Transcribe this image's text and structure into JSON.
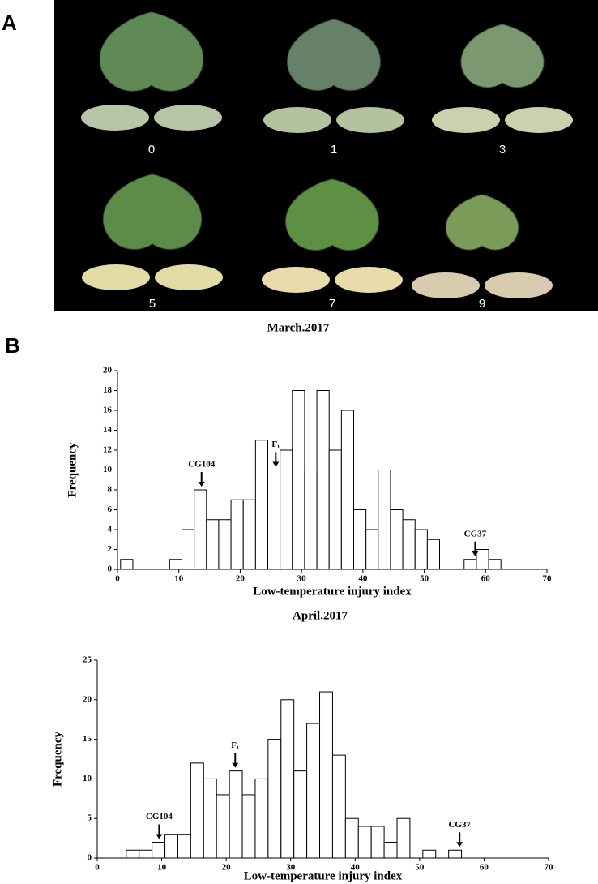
{
  "figure": {
    "panel_labels": [
      "A",
      "B"
    ],
    "grades": [
      "0",
      "1",
      "3",
      "5",
      "7",
      "9"
    ]
  },
  "chart_data": [
    {
      "type": "histogram",
      "title": "March.2017",
      "x_label": "Low-temperature injury index",
      "y_label": "Frequency",
      "bins": [
        0.5,
        2.5,
        4.5,
        6.5,
        8.5,
        10.5,
        12.5,
        14.5,
        16.5,
        18.5,
        20.5,
        22.5,
        24.5,
        26.5,
        28.5,
        30.5,
        32.5,
        34.5,
        36.5,
        38.5,
        40.5,
        42.5,
        44.5,
        46.5,
        48.5,
        50.5,
        52.5,
        54.5,
        56.5,
        58.5,
        60.5,
        62.5
      ],
      "values": [
        1,
        0,
        0,
        0,
        1,
        4,
        8,
        5,
        5,
        7,
        7,
        13,
        10,
        12,
        18,
        10,
        18,
        12,
        16,
        6,
        4,
        10,
        6,
        5,
        4,
        3,
        0,
        0,
        1,
        2,
        1
      ],
      "color": "#ffffff",
      "xlim": [
        0,
        70
      ],
      "xticks": [
        0,
        10,
        20,
        30,
        40,
        50,
        60,
        70
      ],
      "ylim": [
        0,
        20
      ],
      "yticks": [
        0,
        2,
        4,
        6,
        8,
        10,
        12,
        14,
        16,
        18,
        20
      ],
      "annotations": [
        {
          "text": "CG104",
          "x": 13.7
        },
        {
          "text": "F₁",
          "x": 25.8
        },
        {
          "text": "CG37",
          "x": 58.3
        }
      ]
    },
    {
      "type": "histogram",
      "title": "April.2017",
      "x_label": "Low-temperature injury index",
      "y_label": "Frequency",
      "bins": [
        4.5,
        6.5,
        8.5,
        10.5,
        12.5,
        14.5,
        16.5,
        18.5,
        20.5,
        22.5,
        24.5,
        26.5,
        28.5,
        30.5,
        32.5,
        34.5,
        36.5,
        38.5,
        40.5,
        42.5,
        44.5,
        46.5,
        48.5,
        50.5,
        52.5,
        54.5,
        56.5
      ],
      "values": [
        1,
        1,
        2,
        3,
        3,
        12,
        10,
        8,
        11,
        8,
        10,
        15,
        20,
        11,
        17,
        21,
        13,
        5,
        4,
        4,
        2,
        5,
        0,
        1,
        0,
        1
      ],
      "color": "#ffffff",
      "xlim": [
        0,
        70
      ],
      "xticks": [
        0,
        10,
        20,
        30,
        40,
        50,
        60,
        70
      ],
      "ylim": [
        0,
        25
      ],
      "yticks": [
        0,
        5,
        10,
        15,
        20,
        25
      ],
      "annotations": [
        {
          "text": "CG104",
          "x": 9.6
        },
        {
          "text": "F₁",
          "x": 21.4
        },
        {
          "text": "CG37",
          "x": 56.2
        }
      ]
    }
  ]
}
